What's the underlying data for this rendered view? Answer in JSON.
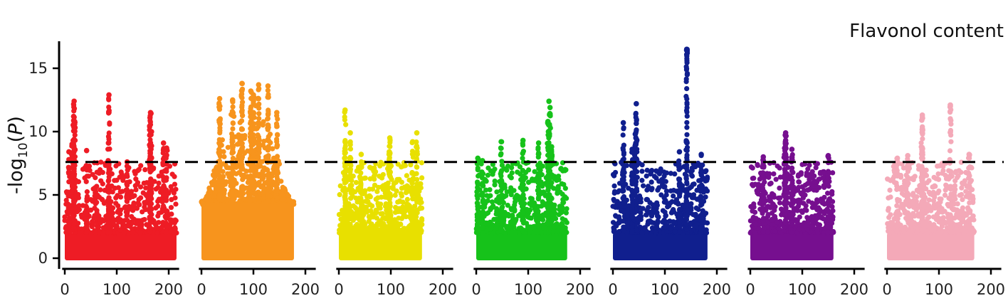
{
  "chart_data": {
    "type": "scatter",
    "subtype": "manhattan",
    "title": "Flavonol content",
    "ylabel": {
      "prefix": "-log",
      "subscript": "10",
      "suffix_open": "(",
      "italic": "P",
      "suffix_close": ")"
    },
    "xlabel": "",
    "ylim": [
      0,
      17
    ],
    "yticks": [
      0,
      5,
      10,
      15
    ],
    "xticks": [
      0,
      100,
      200
    ],
    "xlim": [
      -5,
      220
    ],
    "threshold": 7.6,
    "threshold_style": "dashed",
    "grid": false,
    "panels": [
      {
        "color": "#ee1c25",
        "xmax": 215,
        "peaks": [
          {
            "x": 18,
            "y": 12.4
          },
          {
            "x": 17,
            "y": 11.2
          },
          {
            "x": 19,
            "y": 10.8
          },
          {
            "x": 14,
            "y": 9.0
          },
          {
            "x": 85,
            "y": 12.9
          },
          {
            "x": 84,
            "y": 9.1
          },
          {
            "x": 165,
            "y": 11.5
          },
          {
            "x": 164,
            "y": 11.1
          },
          {
            "x": 166,
            "y": 10.0
          },
          {
            "x": 190,
            "y": 9.1
          },
          {
            "x": 196,
            "y": 8.7
          },
          {
            "x": 8,
            "y": 8.4
          },
          {
            "x": 42,
            "y": 8.5
          },
          {
            "x": 120,
            "y": 7.6
          }
        ]
      },
      {
        "color": "#f7941d",
        "xmax": 178,
        "peaks": [
          {
            "x": 78,
            "y": 13.8
          },
          {
            "x": 110,
            "y": 13.7
          },
          {
            "x": 128,
            "y": 13.6
          },
          {
            "x": 95,
            "y": 13.2
          },
          {
            "x": 100,
            "y": 12.9
          },
          {
            "x": 60,
            "y": 12.5
          },
          {
            "x": 35,
            "y": 12.6
          },
          {
            "x": 145,
            "y": 11.5
          }
        ]
      },
      {
        "color": "#e8e000",
        "xmax": 160,
        "peaks": [
          {
            "x": 12,
            "y": 11.7
          },
          {
            "x": 22,
            "y": 9.9
          },
          {
            "x": 12,
            "y": 9.2
          },
          {
            "x": 98,
            "y": 9.5
          },
          {
            "x": 97,
            "y": 8.4
          },
          {
            "x": 150,
            "y": 9.9
          },
          {
            "x": 142,
            "y": 9.2
          },
          {
            "x": 43,
            "y": 8.2
          }
        ]
      },
      {
        "color": "#16c21a",
        "xmax": 175,
        "peaks": [
          {
            "x": 140,
            "y": 12.4
          },
          {
            "x": 142,
            "y": 11.9
          },
          {
            "x": 138,
            "y": 10.8
          },
          {
            "x": 90,
            "y": 9.3
          },
          {
            "x": 48,
            "y": 9.2
          },
          {
            "x": 120,
            "y": 9.1
          },
          {
            "x": 145,
            "y": 8.8
          },
          {
            "x": 3,
            "y": 7.9
          },
          {
            "x": 12,
            "y": 7.7
          }
        ]
      },
      {
        "color": "#101f8e",
        "xmax": 182,
        "peaks": [
          {
            "x": 142,
            "y": 16.5
          },
          {
            "x": 45,
            "y": 12.2
          },
          {
            "x": 20,
            "y": 10.7
          },
          {
            "x": 43,
            "y": 9.8
          },
          {
            "x": 142,
            "y": 9.2
          },
          {
            "x": 37,
            "y": 8.6
          },
          {
            "x": 170,
            "y": 8.2
          },
          {
            "x": 128,
            "y": 8.4
          }
        ]
      },
      {
        "color": "#760f8f",
        "xmax": 160,
        "peaks": [
          {
            "x": 68,
            "y": 9.9
          },
          {
            "x": 68,
            "y": 9.3
          },
          {
            "x": 80,
            "y": 8.6
          },
          {
            "x": 25,
            "y": 8.0
          },
          {
            "x": 150,
            "y": 8.1
          },
          {
            "x": 66,
            "y": 8.7
          }
        ]
      },
      {
        "color": "#f4a9b8",
        "xmax": 168,
        "peaks": [
          {
            "x": 68,
            "y": 11.3
          },
          {
            "x": 67,
            "y": 10.9
          },
          {
            "x": 122,
            "y": 12.1
          },
          {
            "x": 68,
            "y": 10.2
          },
          {
            "x": 158,
            "y": 8.2
          },
          {
            "x": 40,
            "y": 8.1
          },
          {
            "x": 20,
            "y": 7.9
          }
        ]
      }
    ]
  }
}
